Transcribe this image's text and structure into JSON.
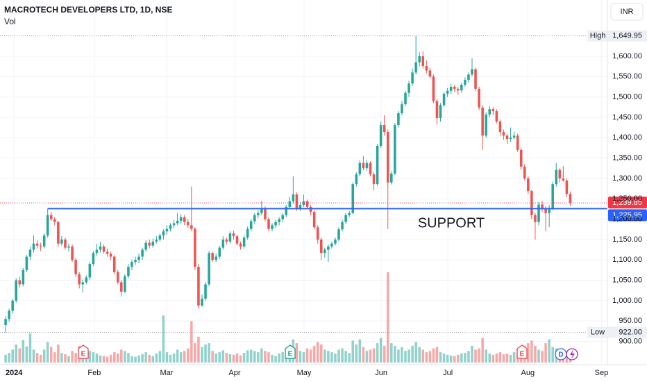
{
  "chart_data": {
    "type": "candlestick",
    "title": "MACROTECH DEVELOPERS LTD, 1D, NSE",
    "subtitle": "Vol",
    "currency": "INR",
    "up_color": "#26a69a",
    "down_color": "#ef5350",
    "ylim": [
      848,
      1738
    ],
    "xlim": [
      -1.6,
      171.6
    ],
    "vol_ylim": [
      0,
      14
    ],
    "yticks": [
      {
        "value": 900,
        "label": "900.00"
      },
      {
        "value": 950,
        "label": "950.00"
      },
      {
        "value": 1000,
        "label": "1,000.00"
      },
      {
        "value": 1050,
        "label": "1,050.00"
      },
      {
        "value": 1100,
        "label": "1,100.00"
      },
      {
        "value": 1150,
        "label": "1,150.00"
      },
      {
        "value": 1200,
        "label": "1,200.00"
      },
      {
        "value": 1250,
        "label": "1,250.00"
      },
      {
        "value": 1300,
        "label": "1,300.00"
      },
      {
        "value": 1350,
        "label": "1,350.00"
      },
      {
        "value": 1400,
        "label": "1,400.00"
      },
      {
        "value": 1450,
        "label": "1,450.00"
      },
      {
        "value": 1500,
        "label": "1,500.00"
      },
      {
        "value": 1550,
        "label": "1,550.00"
      },
      {
        "value": 1600,
        "label": "1,600.00"
      }
    ],
    "xticks": [
      {
        "value": 2.4,
        "label": "2024"
      },
      {
        "value": 25.3,
        "label": "Feb"
      },
      {
        "value": 45.9,
        "label": "Mar"
      },
      {
        "value": 65.3,
        "label": "Apr"
      },
      {
        "value": 85.1,
        "label": "May"
      },
      {
        "value": 107.1,
        "label": "Jun"
      },
      {
        "value": 126.1,
        "label": "Jul"
      },
      {
        "value": 148.9,
        "label": "Aug"
      },
      {
        "value": 169.9,
        "label": "Sep"
      }
    ],
    "high": {
      "name": "High",
      "value": 1649.95,
      "label": "1,649.95"
    },
    "low": {
      "name": "Low",
      "value": 922,
      "label": "922.00"
    },
    "last": {
      "value": 1239.85,
      "label": "1,239.85",
      "color": "#f23645"
    },
    "support": {
      "name": "SUPPORT",
      "value": 1225.95,
      "label": "1,225.95",
      "color": "#2962ff"
    },
    "events": [
      "E",
      "E",
      "E",
      "D"
    ],
    "ohlc": [
      [
        940,
        962,
        922,
        955
      ],
      [
        955,
        980,
        948,
        975
      ],
      [
        975,
        1005,
        968,
        1000
      ],
      [
        1000,
        1055,
        995,
        1050
      ],
      [
        1050,
        1058,
        1032,
        1040
      ],
      [
        1040,
        1080,
        1035,
        1075
      ],
      [
        1075,
        1112,
        1070,
        1108
      ],
      [
        1108,
        1132,
        1100,
        1125
      ],
      [
        1125,
        1160,
        1118,
        1140
      ],
      [
        1140,
        1148,
        1128,
        1135
      ],
      [
        1135,
        1142,
        1122,
        1133
      ],
      [
        1133,
        1165,
        1128,
        1160
      ],
      [
        1160,
        1225.95,
        1155,
        1210
      ],
      [
        1210,
        1218,
        1195,
        1200
      ],
      [
        1200,
        1205,
        1185,
        1193
      ],
      [
        1193,
        1196,
        1132,
        1140
      ],
      [
        1140,
        1158,
        1135,
        1150
      ],
      [
        1150,
        1155,
        1125,
        1130
      ],
      [
        1130,
        1140,
        1120,
        1133
      ],
      [
        1133,
        1138,
        1095,
        1100
      ],
      [
        1100,
        1105,
        1058,
        1065
      ],
      [
        1065,
        1070,
        1030,
        1040
      ],
      [
        1040,
        1052,
        1020,
        1045
      ],
      [
        1045,
        1062,
        1040,
        1057
      ],
      [
        1057,
        1095,
        1050,
        1090
      ],
      [
        1090,
        1122,
        1085,
        1117
      ],
      [
        1117,
        1140,
        1110,
        1125
      ],
      [
        1125,
        1145,
        1118,
        1133
      ],
      [
        1133,
        1138,
        1115,
        1120
      ],
      [
        1120,
        1128,
        1108,
        1115
      ],
      [
        1115,
        1120,
        1100,
        1108
      ],
      [
        1108,
        1112,
        1065,
        1070
      ],
      [
        1070,
        1075,
        1040,
        1045
      ],
      [
        1045,
        1050,
        1010,
        1022
      ],
      [
        1022,
        1065,
        1018,
        1060
      ],
      [
        1060,
        1090,
        1055,
        1083
      ],
      [
        1083,
        1100,
        1075,
        1095
      ],
      [
        1095,
        1108,
        1088,
        1100
      ],
      [
        1100,
        1115,
        1092,
        1108
      ],
      [
        1108,
        1130,
        1100,
        1125
      ],
      [
        1125,
        1148,
        1120,
        1142
      ],
      [
        1142,
        1150,
        1128,
        1135
      ],
      [
        1135,
        1152,
        1130,
        1145
      ],
      [
        1145,
        1158,
        1140,
        1150
      ],
      [
        1150,
        1165,
        1145,
        1160
      ],
      [
        1160,
        1175,
        1150,
        1170
      ],
      [
        1170,
        1185,
        1162,
        1176
      ],
      [
        1176,
        1190,
        1170,
        1185
      ],
      [
        1185,
        1198,
        1178,
        1190
      ],
      [
        1190,
        1215,
        1185,
        1196
      ],
      [
        1196,
        1212,
        1188,
        1205
      ],
      [
        1205,
        1210,
        1185,
        1193
      ],
      [
        1193,
        1200,
        1178,
        1185
      ],
      [
        1185,
        1280,
        1170,
        1176
      ],
      [
        1176,
        1180,
        1075,
        1083
      ],
      [
        1083,
        1090,
        980,
        988
      ],
      [
        988,
        1015,
        985,
        1005
      ],
      [
        1005,
        1045,
        1000,
        1040
      ],
      [
        1040,
        1122,
        1035,
        1117
      ],
      [
        1117,
        1120,
        1095,
        1100
      ],
      [
        1100,
        1115,
        1095,
        1108
      ],
      [
        1108,
        1135,
        1102,
        1130
      ],
      [
        1130,
        1158,
        1125,
        1150
      ],
      [
        1150,
        1155,
        1138,
        1145
      ],
      [
        1145,
        1170,
        1140,
        1165
      ],
      [
        1165,
        1172,
        1150,
        1158
      ],
      [
        1158,
        1162,
        1135,
        1140
      ],
      [
        1140,
        1145,
        1125,
        1133
      ],
      [
        1133,
        1160,
        1128,
        1155
      ],
      [
        1155,
        1182,
        1150,
        1176
      ],
      [
        1176,
        1200,
        1170,
        1195
      ],
      [
        1195,
        1215,
        1188,
        1210
      ],
      [
        1210,
        1222,
        1202,
        1215
      ],
      [
        1215,
        1245,
        1210,
        1227
      ],
      [
        1227,
        1232,
        1195,
        1200
      ],
      [
        1200,
        1205,
        1170,
        1176
      ],
      [
        1176,
        1190,
        1170,
        1185
      ],
      [
        1185,
        1198,
        1178,
        1193
      ],
      [
        1193,
        1205,
        1185,
        1200
      ],
      [
        1200,
        1215,
        1192,
        1210
      ],
      [
        1210,
        1235,
        1205,
        1230
      ],
      [
        1230,
        1255,
        1225,
        1244
      ],
      [
        1244,
        1305,
        1238,
        1261
      ],
      [
        1261,
        1266,
        1220,
        1227
      ],
      [
        1227,
        1242,
        1220,
        1235
      ],
      [
        1235,
        1260,
        1230,
        1244
      ],
      [
        1244,
        1248,
        1225,
        1230
      ],
      [
        1230,
        1235,
        1210,
        1218
      ],
      [
        1218,
        1222,
        1175,
        1180
      ],
      [
        1180,
        1185,
        1140,
        1150
      ],
      [
        1150,
        1155,
        1100,
        1117
      ],
      [
        1117,
        1130,
        1105,
        1125
      ],
      [
        1125,
        1138,
        1095,
        1133
      ],
      [
        1133,
        1145,
        1128,
        1140
      ],
      [
        1140,
        1155,
        1135,
        1150
      ],
      [
        1150,
        1180,
        1145,
        1175
      ],
      [
        1175,
        1198,
        1170,
        1193
      ],
      [
        1193,
        1215,
        1188,
        1210
      ],
      [
        1210,
        1220,
        1205,
        1215
      ],
      [
        1215,
        1290,
        1212,
        1286
      ],
      [
        1286,
        1315,
        1280,
        1310
      ],
      [
        1310,
        1345,
        1305,
        1338
      ],
      [
        1338,
        1355,
        1320,
        1325
      ],
      [
        1325,
        1345,
        1318,
        1338
      ],
      [
        1338,
        1342,
        1305,
        1310
      ],
      [
        1310,
        1315,
        1270,
        1286
      ],
      [
        1286,
        1385,
        1282,
        1380
      ],
      [
        1380,
        1440,
        1375,
        1431
      ],
      [
        1431,
        1455,
        1405,
        1414
      ],
      [
        1414,
        1420,
        1176,
        1290
      ],
      [
        1290,
        1318,
        1285,
        1312
      ],
      [
        1312,
        1436,
        1308,
        1431
      ],
      [
        1431,
        1465,
        1425,
        1460
      ],
      [
        1460,
        1490,
        1455,
        1482
      ],
      [
        1482,
        1515,
        1478,
        1510
      ],
      [
        1510,
        1540,
        1500,
        1533
      ],
      [
        1533,
        1570,
        1528,
        1560
      ],
      [
        1560,
        1649.95,
        1555,
        1585
      ],
      [
        1585,
        1610,
        1575,
        1600
      ],
      [
        1600,
        1612,
        1570,
        1576
      ],
      [
        1576,
        1590,
        1558,
        1565
      ],
      [
        1565,
        1572,
        1545,
        1550
      ],
      [
        1550,
        1555,
        1485,
        1490
      ],
      [
        1490,
        1495,
        1432,
        1448
      ],
      [
        1448,
        1485,
        1440,
        1480
      ],
      [
        1480,
        1512,
        1475,
        1508
      ],
      [
        1508,
        1522,
        1500,
        1515
      ],
      [
        1515,
        1532,
        1508,
        1525
      ],
      [
        1525,
        1530,
        1512,
        1520
      ],
      [
        1520,
        1525,
        1505,
        1516
      ],
      [
        1516,
        1535,
        1510,
        1530
      ],
      [
        1530,
        1548,
        1525,
        1542
      ],
      [
        1542,
        1560,
        1535,
        1555
      ],
      [
        1555,
        1595,
        1550,
        1568
      ],
      [
        1568,
        1572,
        1515,
        1520
      ],
      [
        1520,
        1525,
        1468,
        1474
      ],
      [
        1474,
        1480,
        1370,
        1405
      ],
      [
        1405,
        1462,
        1400,
        1457
      ],
      [
        1457,
        1478,
        1450,
        1470
      ],
      [
        1470,
        1475,
        1455,
        1465
      ],
      [
        1465,
        1470,
        1435,
        1440
      ],
      [
        1440,
        1445,
        1405,
        1414
      ],
      [
        1414,
        1420,
        1395,
        1405
      ],
      [
        1405,
        1410,
        1385,
        1397
      ],
      [
        1397,
        1425,
        1390,
        1400
      ],
      [
        1400,
        1415,
        1395,
        1405
      ],
      [
        1405,
        1410,
        1365,
        1370
      ],
      [
        1370,
        1375,
        1322,
        1329
      ],
      [
        1329,
        1335,
        1295,
        1300
      ],
      [
        1300,
        1305,
        1262,
        1269
      ],
      [
        1269,
        1272,
        1200,
        1210
      ],
      [
        1210,
        1215,
        1150,
        1193
      ],
      [
        1193,
        1242,
        1185,
        1236
      ],
      [
        1236,
        1245,
        1218,
        1227
      ],
      [
        1227,
        1232,
        1170,
        1215
      ],
      [
        1215,
        1235,
        1180,
        1227
      ],
      [
        1227,
        1292,
        1222,
        1286
      ],
      [
        1286,
        1338,
        1280,
        1321
      ],
      [
        1321,
        1325,
        1290,
        1300
      ],
      [
        1300,
        1330,
        1292,
        1295
      ],
      [
        1295,
        1300,
        1255,
        1262
      ],
      [
        1262,
        1268,
        1232,
        1239.85
      ]
    ],
    "volume": [
      1.2,
      1.5,
      2.0,
      2.8,
      2.2,
      3.5,
      2.5,
      4.5,
      2.0,
      1.5,
      1.2,
      2.0,
      3.2,
      2.4,
      1.6,
      2.8,
      1.5,
      1.3,
      1.0,
      1.8,
      1.5,
      2.6,
      1.4,
      1.2,
      1.8,
      1.6,
      1.4,
      1.1,
      1.0,
      0.9,
      1.2,
      1.6,
      1.4,
      2.0,
      1.8,
      1.5,
      1.0,
      0.9,
      1.1,
      1.3,
      1.6,
      1.2,
      1.0,
      1.4,
      1.8,
      7.3,
      1.6,
      1.2,
      1.4,
      2.0,
      1.6,
      1.8,
      2.2,
      6.4,
      3.0,
      4.0,
      2.4,
      2.8,
      3.0,
      1.8,
      1.4,
      1.6,
      1.9,
      1.5,
      1.3,
      1.2,
      1.4,
      1.1,
      1.5,
      1.9,
      2.0,
      1.8,
      1.6,
      2.2,
      1.8,
      1.6,
      1.2,
      1.0,
      1.4,
      1.6,
      1.8,
      2.4,
      3.6,
      3.0,
      1.8,
      1.6,
      2.2,
      2.0,
      2.6,
      3.2,
      2.8,
      2.0,
      1.8,
      1.6,
      1.4,
      2.0,
      2.2,
      1.8,
      1.5,
      3.4,
      2.8,
      3.6,
      2.4,
      1.8,
      2.0,
      2.2,
      3.0,
      3.8,
      2.6,
      14.0,
      3.0,
      2.6,
      2.0,
      2.4,
      1.8,
      2.0,
      2.6,
      3.2,
      2.4,
      2.0,
      1.6,
      1.8,
      2.2,
      2.4,
      1.6,
      1.4,
      1.2,
      1.1,
      1.0,
      1.2,
      1.4,
      1.5,
      1.8,
      2.6,
      2.0,
      2.2,
      3.8,
      2.0,
      1.4,
      1.2,
      1.4,
      1.6,
      1.3,
      1.4,
      1.2,
      1.6,
      2.0,
      2.2,
      2.6,
      3.0,
      3.4,
      2.6,
      2.0,
      1.8,
      3.0,
      3.6,
      2.4,
      2.2,
      1.6,
      1.4,
      1.6,
      1.8
    ]
  }
}
